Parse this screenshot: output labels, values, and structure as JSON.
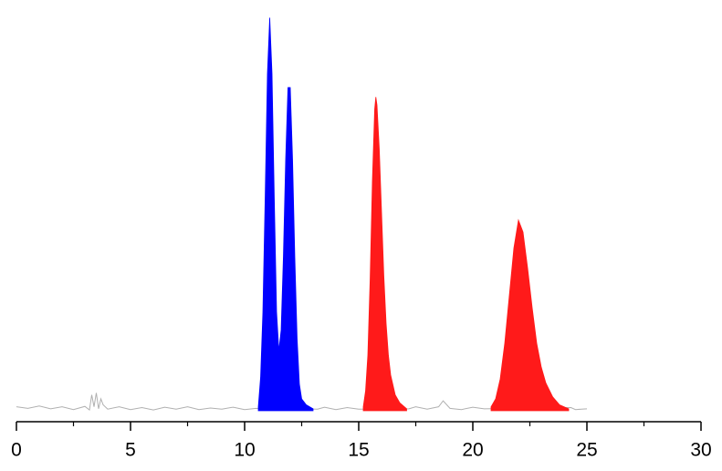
{
  "chart_data": {
    "type": "area",
    "xlim": [
      0,
      30
    ],
    "xticks": [
      0,
      5,
      10,
      15,
      20,
      25,
      30
    ],
    "xminorticks": [
      2.5,
      7.5,
      12.5,
      17.5,
      22.5,
      27.5
    ],
    "ylim": [
      0,
      100
    ],
    "series": [
      {
        "color": "#b0b0b0",
        "fill": false,
        "x": [
          0,
          0.5,
          1,
          1.5,
          2,
          2.5,
          3,
          3.2,
          3.3,
          3.4,
          3.5,
          3.6,
          3.7,
          3.8,
          4,
          4.5,
          5,
          5.5,
          6,
          6.5,
          7,
          7.5,
          8,
          8.5,
          9,
          9.5,
          10,
          10.5,
          13.2,
          13.5,
          14,
          14.5,
          15,
          17.2,
          17.5,
          18,
          18.5,
          18.7,
          19,
          19.5,
          20,
          20.5,
          24.3,
          24.5,
          25
        ],
        "values": [
          1,
          0.6,
          1.2,
          0.5,
          1,
          0.3,
          1.1,
          0.2,
          4,
          1,
          4.5,
          0.5,
          3,
          1.5,
          0.4,
          1,
          0.3,
          0.8,
          0.2,
          0.9,
          0.4,
          1,
          0.3,
          0.7,
          0.4,
          0.9,
          0.3,
          0.6,
          0.4,
          0.9,
          0.3,
          0.8,
          0.4,
          0.5,
          1,
          0.4,
          1,
          2.5,
          0.6,
          0.3,
          0.9,
          0.5,
          0.8,
          0.3,
          0.5
        ]
      },
      {
        "color": "#0000ff",
        "fill": true,
        "x": [
          10.6,
          10.7,
          10.8,
          10.9,
          11.0,
          11.1,
          11.2,
          11.3,
          11.4,
          11.5,
          11.6,
          11.7,
          11.8,
          11.9,
          12.0,
          12.1,
          12.2,
          12.3,
          12.4,
          12.5,
          12.7,
          13.0
        ],
        "values": [
          1,
          8.4,
          24.7,
          53.4,
          84.9,
          99,
          84.9,
          53.4,
          24.9,
          15.1,
          20.3,
          38.9,
          63.4,
          81.4,
          81.4,
          63.4,
          38.5,
          18.2,
          6.7,
          3,
          1.5,
          0.5
        ]
      },
      {
        "color": "#ff1a1a",
        "fill": true,
        "x": [
          15.2,
          15.3,
          15.4,
          15.5,
          15.6,
          15.7,
          15.75,
          15.8,
          15.9,
          16.0,
          16.1,
          16.2,
          16.3,
          16.4,
          16.6,
          16.8,
          17.1
        ],
        "values": [
          1,
          5,
          14,
          33,
          58,
          76,
          79,
          77,
          66,
          50,
          34,
          22,
          14,
          9,
          4,
          2,
          0.5
        ]
      },
      {
        "color": "#ff1a1a",
        "fill": true,
        "x": [
          20.8,
          21.0,
          21.2,
          21.4,
          21.6,
          21.8,
          22.0,
          22.2,
          22.4,
          22.6,
          22.8,
          23.0,
          23.2,
          23.5,
          23.8,
          24.2
        ],
        "values": [
          1,
          3,
          8,
          17,
          29,
          41,
          48,
          45,
          36,
          26,
          17,
          11,
          7,
          3.5,
          1.5,
          0.5
        ]
      }
    ]
  }
}
